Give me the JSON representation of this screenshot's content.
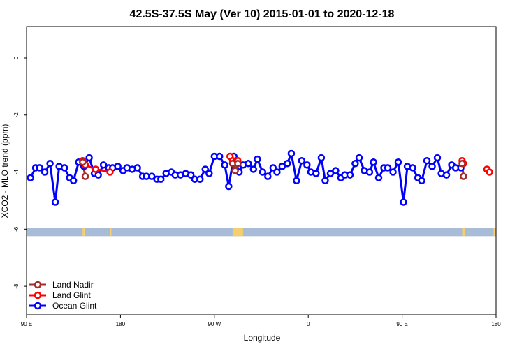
{
  "chart_data": {
    "type": "line",
    "title": "42.5S-37.5S May (Ver 10)   2015-01-01 to 2020-12-18",
    "xlabel": "Longitude",
    "ylabel": "XCO2 - MLO trend (ppm)",
    "xlim": [
      90,
      450
    ],
    "ylim": [
      -9,
      1.1
    ],
    "x_ticks": [
      {
        "value": 90,
        "label": "90 E"
      },
      {
        "value": 162,
        "label": "180"
      },
      {
        "value": 234,
        "label": "90 W"
      },
      {
        "value": 306,
        "label": "0"
      },
      {
        "value": 378,
        "label": "90 E"
      },
      {
        "value": 450,
        "label": "180"
      }
    ],
    "y_ticks": [
      {
        "value": 0,
        "label": "0"
      },
      {
        "value": -2,
        "label": "-2"
      },
      {
        "value": -4,
        "label": "-4"
      },
      {
        "value": -6,
        "label": "-6"
      },
      {
        "value": -8,
        "label": "-8"
      }
    ],
    "legend_position": "bottom-left",
    "series": [
      {
        "name": "Land Nadir",
        "color": "#a52a2a",
        "points": [
          [
            133,
            -3.65
          ],
          [
            135,
            -4.15
          ],
          [
            248,
            -3.7
          ],
          [
            250,
            -3.95
          ],
          [
            252,
            -3.7
          ],
          [
            424,
            -3.7
          ],
          [
            425,
            -4.15
          ]
        ]
      },
      {
        "name": "Land Glint",
        "color": "#ff0000",
        "points": [
          [
            133,
            -3.6
          ],
          [
            135,
            -3.75
          ],
          [
            143,
            -3.9
          ],
          [
            154,
            -4.0
          ],
          [
            246,
            -3.45
          ],
          [
            248,
            -3.6
          ],
          [
            250,
            -3.65
          ],
          [
            252,
            -3.6
          ],
          [
            424,
            -3.6
          ],
          [
            425,
            -3.7
          ],
          [
            443,
            -3.9
          ],
          [
            445,
            -4.0
          ]
        ]
      },
      {
        "name": "Ocean Glint",
        "color": "#0000ff",
        "points": [
          [
            93,
            -4.2
          ],
          [
            97,
            -3.85
          ],
          [
            100,
            -3.85
          ],
          [
            104,
            -4.0
          ],
          [
            108,
            -3.7
          ],
          [
            112,
            -5.05
          ],
          [
            115,
            -3.8
          ],
          [
            119,
            -3.85
          ],
          [
            123,
            -4.2
          ],
          [
            126,
            -4.3
          ],
          [
            130,
            -3.65
          ],
          [
            134,
            -3.8
          ],
          [
            138,
            -3.5
          ],
          [
            142,
            -4.05
          ],
          [
            145,
            -4.1
          ],
          [
            149,
            -3.75
          ],
          [
            153,
            -3.85
          ],
          [
            156,
            -3.85
          ],
          [
            160,
            -3.8
          ],
          [
            164,
            -3.95
          ],
          [
            167,
            -3.85
          ],
          [
            171,
            -3.9
          ],
          [
            175,
            -3.85
          ],
          [
            179,
            -4.15
          ],
          [
            182,
            -4.15
          ],
          [
            186,
            -4.15
          ],
          [
            190,
            -4.25
          ],
          [
            193,
            -4.25
          ],
          [
            197,
            -4.05
          ],
          [
            201,
            -4.0
          ],
          [
            204,
            -4.1
          ],
          [
            208,
            -4.1
          ],
          [
            212,
            -4.05
          ],
          [
            216,
            -4.1
          ],
          [
            219,
            -4.25
          ],
          [
            223,
            -4.25
          ],
          [
            227,
            -3.9
          ],
          [
            230,
            -4.05
          ],
          [
            234,
            -3.45
          ],
          [
            238,
            -3.45
          ],
          [
            242,
            -3.75
          ],
          [
            245,
            -4.5
          ],
          [
            249,
            -3.45
          ],
          [
            253,
            -4.0
          ],
          [
            256,
            -3.75
          ],
          [
            260,
            -3.7
          ],
          [
            264,
            -3.9
          ],
          [
            267,
            -3.55
          ],
          [
            271,
            -4.0
          ],
          [
            275,
            -4.15
          ],
          [
            279,
            -3.85
          ],
          [
            282,
            -4.0
          ],
          [
            286,
            -3.8
          ],
          [
            290,
            -3.7
          ],
          [
            293,
            -3.35
          ],
          [
            297,
            -4.3
          ],
          [
            301,
            -3.6
          ],
          [
            305,
            -3.75
          ],
          [
            308,
            -4.0
          ],
          [
            312,
            -4.05
          ],
          [
            316,
            -3.5
          ],
          [
            319,
            -4.3
          ],
          [
            323,
            -4.05
          ],
          [
            327,
            -3.95
          ],
          [
            331,
            -4.2
          ],
          [
            334,
            -4.1
          ],
          [
            338,
            -4.1
          ],
          [
            342,
            -3.7
          ],
          [
            345,
            -3.5
          ],
          [
            349,
            -3.95
          ],
          [
            353,
            -4.0
          ],
          [
            356,
            -3.65
          ],
          [
            360,
            -4.2
          ],
          [
            364,
            -3.85
          ],
          [
            367,
            -3.85
          ],
          [
            371,
            -4.0
          ],
          [
            375,
            -3.65
          ],
          [
            379,
            -5.05
          ],
          [
            382,
            -3.8
          ],
          [
            386,
            -3.85
          ],
          [
            390,
            -4.2
          ],
          [
            393,
            -4.3
          ],
          [
            397,
            -3.6
          ],
          [
            401,
            -3.8
          ],
          [
            405,
            -3.5
          ],
          [
            408,
            -4.05
          ],
          [
            412,
            -4.1
          ],
          [
            416,
            -3.75
          ],
          [
            419,
            -3.85
          ],
          [
            423,
            -3.85
          ]
        ]
      }
    ],
    "surface_strip": {
      "y": -6,
      "ocean_color": "#a8bcd8",
      "land_color": "#f5cf6e",
      "land_segments": [
        [
          133,
          135
        ],
        [
          154,
          155
        ],
        [
          248,
          256
        ],
        [
          424,
          426
        ],
        [
          448,
          450
        ]
      ]
    }
  }
}
